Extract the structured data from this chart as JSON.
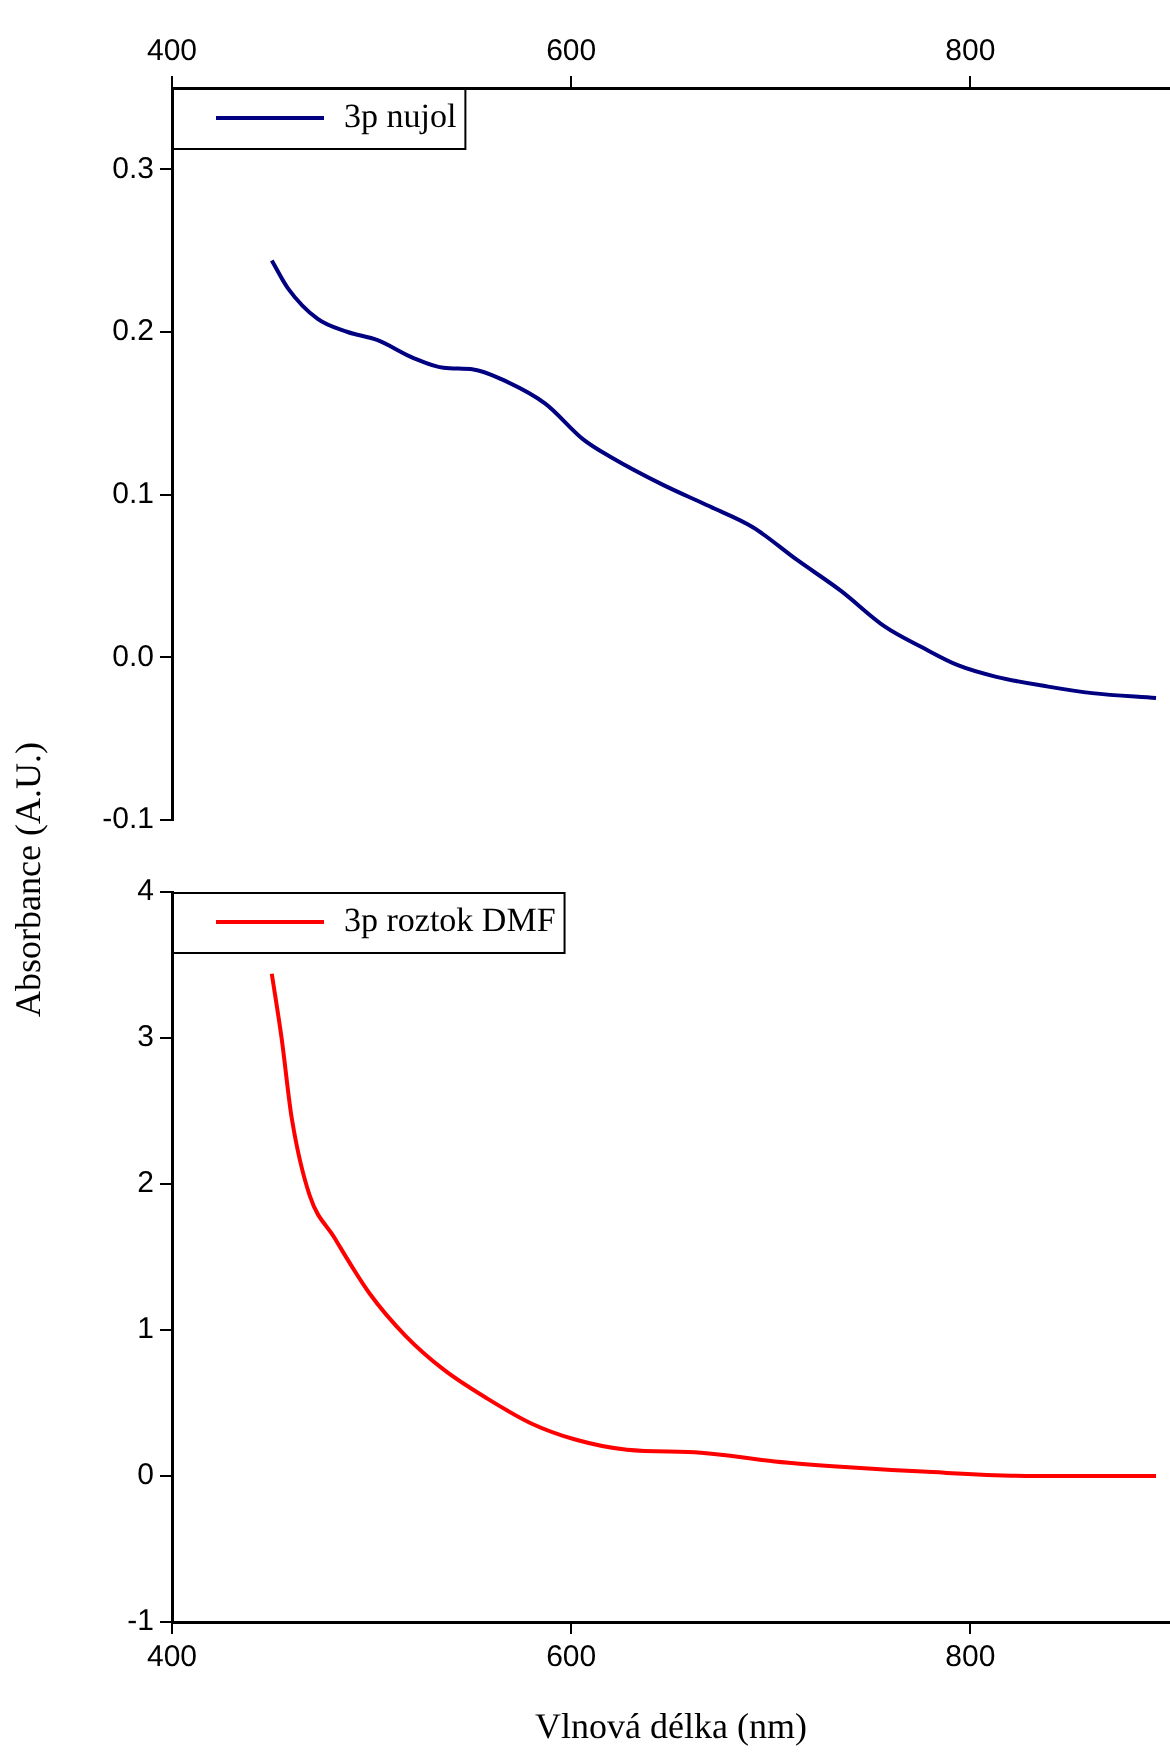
{
  "chart_data": [
    {
      "type": "line",
      "ylabel": "Absorbance (A.U.)",
      "xlim": [
        400,
        900
      ],
      "xticks": [
        400,
        600,
        800
      ],
      "ylim": [
        -0.1,
        0.35
      ],
      "yticks": [
        -0.1,
        {
          "value": 0,
          "label": "0.0"
        },
        0.1,
        0.2,
        0.3
      ],
      "legend": "top left",
      "grid": false,
      "x": [
        450,
        458,
        473,
        488,
        503,
        521,
        536,
        551,
        565,
        587,
        606,
        620,
        646,
        669,
        691,
        713,
        735,
        757,
        776,
        794,
        813,
        839,
        861,
        893
      ],
      "series": [
        {
          "name": "3p nujol",
          "color": "#000080",
          "values": [
            0.244,
            0.227,
            0.208,
            0.2,
            0.195,
            0.184,
            0.178,
            0.177,
            0.171,
            0.156,
            0.134,
            0.123,
            0.106,
            0.093,
            0.08,
            0.06,
            0.041,
            0.019,
            0.006,
            -0.005,
            -0.012,
            -0.018,
            -0.022,
            -0.025
          ]
        }
      ]
    },
    {
      "type": "line",
      "xlabel": "Vlnová délka (nm)",
      "xlim": [
        400,
        900
      ],
      "xticks": [
        400,
        600,
        800
      ],
      "ylim": [
        -1,
        4
      ],
      "yticks": [
        -1,
        0,
        1,
        2,
        3,
        4
      ],
      "legend": "top left",
      "grid": false,
      "x": [
        450,
        455,
        460,
        469,
        481,
        499,
        517,
        536,
        558,
        580,
        602,
        628,
        665,
        702,
        739,
        776,
        832,
        893
      ],
      "series": [
        {
          "name": "3p roztok DMF",
          "color": "#ff0000",
          "values": [
            3.44,
            2.99,
            2.45,
            1.92,
            1.64,
            1.25,
            0.96,
            0.73,
            0.53,
            0.36,
            0.25,
            0.18,
            0.16,
            0.1,
            0.06,
            0.03,
            0,
            0
          ]
        }
      ]
    }
  ]
}
